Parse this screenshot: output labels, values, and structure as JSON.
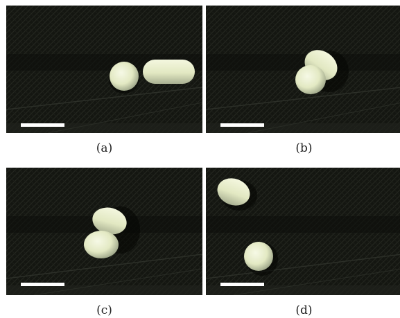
{
  "panels": [
    {
      "id": "a",
      "caption": "(a)"
    },
    {
      "id": "b",
      "caption": "(b)"
    },
    {
      "id": "c",
      "caption": "(c)"
    },
    {
      "id": "d",
      "caption": "(d)"
    }
  ],
  "colors": {
    "background": "#121411",
    "stripe": "#23261f",
    "particle": "#e6ecc6",
    "particle_shadow": "#9ea68a",
    "scale_bar": "#ffffff"
  }
}
